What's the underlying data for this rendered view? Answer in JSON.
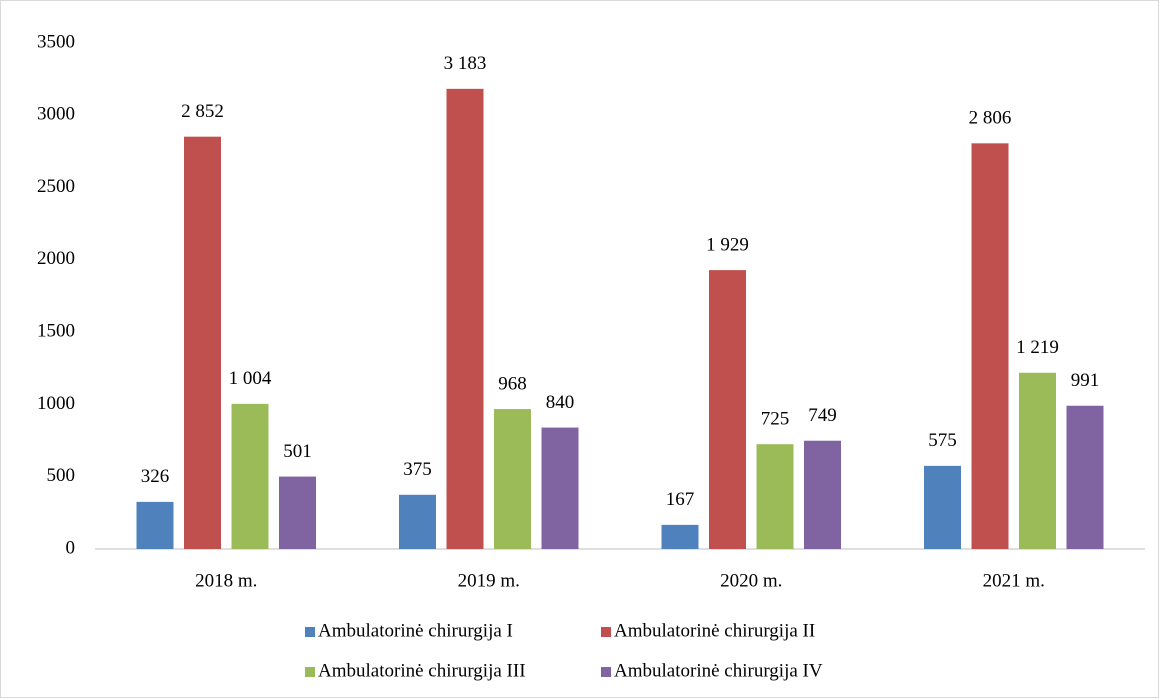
{
  "chart_data": {
    "type": "bar",
    "categories": [
      "2018 m.",
      "2019 m.",
      "2020 m.",
      "2021 m."
    ],
    "series": [
      {
        "name": "Ambulatorinė chirurgija I",
        "color": "#4f81bd",
        "values": [
          326,
          375,
          167,
          575
        ],
        "value_labels": [
          "326",
          "375",
          "167",
          "575"
        ]
      },
      {
        "name": "Ambulatorinė chirurgija II",
        "color": "#c0504d",
        "values": [
          2852,
          3183,
          1929,
          2806
        ],
        "value_labels": [
          "2 852",
          "3 183",
          "1 929",
          "2 806"
        ]
      },
      {
        "name": "Ambulatorinė chirurgija III",
        "color": "#9bbb59",
        "values": [
          1004,
          968,
          725,
          1219
        ],
        "value_labels": [
          "1 004",
          "968",
          "725",
          "1 219"
        ]
      },
      {
        "name": "Ambulatorinė chirurgija IV",
        "color": "#8064a2",
        "values": [
          501,
          840,
          749,
          991
        ],
        "value_labels": [
          "501",
          "840",
          "749",
          "991"
        ]
      }
    ],
    "ylim": [
      0,
      3500
    ],
    "yticks": [
      0,
      500,
      1000,
      1500,
      2000,
      2500,
      3000,
      3500
    ],
    "grid": false,
    "legend": "bottom"
  }
}
